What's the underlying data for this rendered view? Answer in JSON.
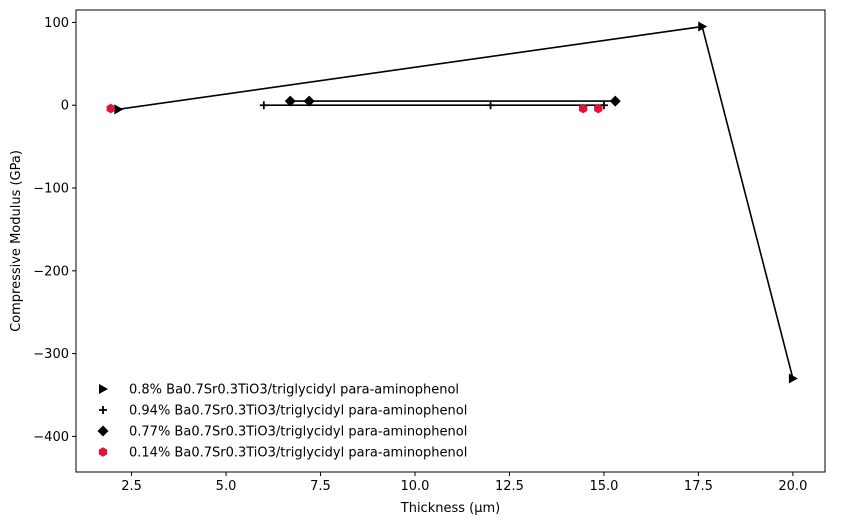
{
  "chart_data": {
    "type": "line",
    "title": "",
    "xlabel": "Thickness (µm)",
    "ylabel": "Compressive Modulus (GPa)",
    "xlim": [
      1.03,
      20.85
    ],
    "ylim": [
      -443,
      115
    ],
    "xticks": [
      2.5,
      5.0,
      7.5,
      10.0,
      12.5,
      15.0,
      17.5,
      20.0
    ],
    "xtick_labels": [
      "2.5",
      "5.0",
      "7.5",
      "10.0",
      "12.5",
      "15.0",
      "17.5",
      "20.0"
    ],
    "yticks": [
      100,
      0,
      -100,
      -200,
      -300,
      -400
    ],
    "ytick_labels": [
      "100",
      "0",
      "−100",
      "−200",
      "−300",
      "−400"
    ],
    "grid": false,
    "legend_position": "lower-left",
    "series": [
      {
        "name": "0.8% Ba0.7Sr0.3TiO3/triglycidyl para-aminophenol",
        "marker": "triangle-right",
        "color": "#000000",
        "line": true,
        "x": [
          2.15,
          17.6,
          20.0
        ],
        "y": [
          -5,
          95,
          -330
        ]
      },
      {
        "name": "0.94% Ba0.7Sr0.3TiO3/triglycidyl para-aminophenol",
        "marker": "plus",
        "color": "#000000",
        "line": true,
        "x": [
          6.0,
          12.0,
          15.0
        ],
        "y": [
          0,
          0,
          0
        ]
      },
      {
        "name": "0.77% Ba0.7Sr0.3TiO3/triglycidyl para-aminophenol",
        "marker": "diamond",
        "color": "#000000",
        "line": true,
        "x": [
          6.7,
          7.2,
          15.3
        ],
        "y": [
          5,
          5,
          5
        ]
      },
      {
        "name": "0.14% Ba0.7Sr0.3TiO3/triglycidyl para-aminophenol",
        "marker": "hexagon",
        "color": "#dc143c",
        "line": false,
        "x": [
          1.95,
          14.45,
          14.85
        ],
        "y": [
          -4,
          -4,
          -4
        ]
      }
    ]
  }
}
